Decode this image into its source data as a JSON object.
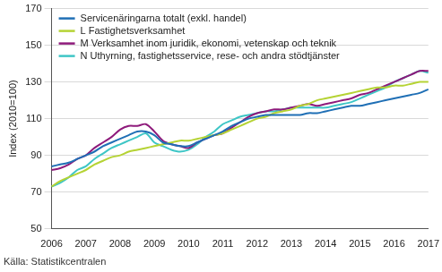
{
  "chart_data": {
    "type": "line",
    "y_label": "Index (2010=100)",
    "source": "Källa: Statistikcentralen",
    "categories": [
      "2006",
      null,
      null,
      null,
      "2007",
      null,
      null,
      null,
      "2008",
      null,
      null,
      null,
      "2009",
      null,
      null,
      null,
      "2010",
      null,
      null,
      null,
      "2011",
      null,
      null,
      null,
      "2012",
      null,
      null,
      null,
      "2013",
      null,
      null,
      null,
      "2014",
      null,
      null,
      null,
      "2015",
      null,
      null,
      null,
      "2016",
      null,
      null,
      null,
      "2017"
    ],
    "series": [
      {
        "name": "Servicenäringarna totalt (exkl. handel)",
        "color": "#1f6fb5",
        "values": [
          84,
          85,
          86,
          88,
          90,
          92,
          95,
          97,
          99,
          101,
          103,
          103,
          101,
          97,
          96,
          95,
          95,
          97,
          99,
          101,
          103,
          106,
          108,
          110,
          111,
          112,
          112,
          112,
          112,
          112,
          113,
          113,
          114,
          115,
          116,
          117,
          117,
          118,
          119,
          120,
          121,
          122,
          123,
          124,
          126
        ]
      },
      {
        "name": "L Fastighetsverksamhet",
        "color": "#b5d334",
        "values": [
          73,
          76,
          78,
          80,
          82,
          85,
          87,
          89,
          90,
          92,
          93,
          94,
          95,
          96,
          97,
          98,
          98,
          99,
          100,
          101,
          102,
          104,
          106,
          108,
          110,
          111,
          113,
          114,
          115,
          117,
          118,
          120,
          121,
          122,
          123,
          124,
          125,
          126,
          127,
          127,
          128,
          128,
          129,
          130,
          130
        ]
      },
      {
        "name": "M Verksamhet inom juridik, ekonomi, vetenskap och teknik",
        "color": "#8e1a7b",
        "values": [
          82,
          83,
          85,
          88,
          90,
          94,
          97,
          100,
          104,
          106,
          106,
          107,
          103,
          98,
          96,
          95,
          94,
          97,
          99,
          101,
          102,
          105,
          108,
          111,
          113,
          114,
          115,
          115,
          116,
          117,
          118,
          117,
          118,
          119,
          120,
          121,
          123,
          124,
          126,
          128,
          130,
          132,
          134,
          136,
          136
        ]
      },
      {
        "name": "N Uthyrning, fastighetsservice, rese- och andra stödtjänster",
        "color": "#3ec6c6",
        "values": [
          73,
          75,
          78,
          82,
          84,
          88,
          91,
          94,
          96,
          98,
          100,
          102,
          97,
          95,
          93,
          92,
          93,
          96,
          100,
          103,
          107,
          109,
          111,
          112,
          113,
          114,
          114,
          115,
          116,
          116,
          116,
          116,
          116,
          117,
          118,
          119,
          121,
          123,
          125,
          127,
          130,
          132,
          134,
          136,
          135
        ]
      }
    ],
    "ylim": [
      50,
      170
    ],
    "yticks": [
      50,
      70,
      90,
      110,
      130,
      150,
      170
    ],
    "grid": true,
    "legend": "upper left"
  }
}
